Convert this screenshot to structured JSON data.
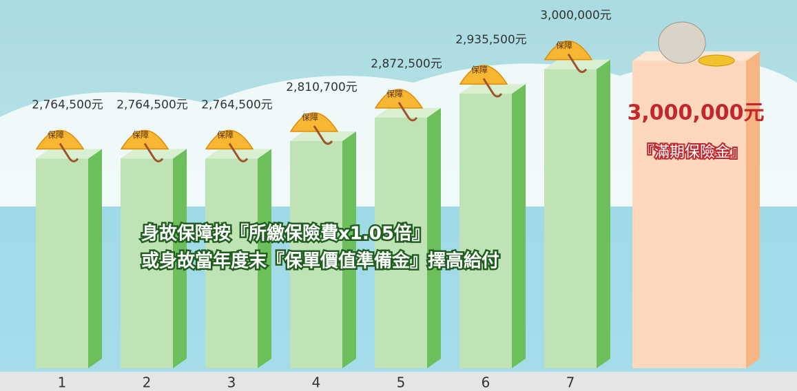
{
  "chart_data": {
    "type": "bar",
    "categories": [
      "1",
      "2",
      "3",
      "4",
      "5",
      "6",
      "7"
    ],
    "values": [
      2764500,
      2764500,
      2764500,
      2810700,
      2872500,
      2935500,
      3000000
    ],
    "value_labels": [
      "2,764,500元",
      "2,764,500元",
      "2,764,500元",
      "2,810,700元",
      "2,872,500元",
      "2,935,500元",
      "3,000,000元"
    ],
    "color": "#bfe3b5",
    "ylim": [
      2212000,
      3050000
    ],
    "badge": "保障",
    "notes": [
      "身故保障按『所繳保險費x1.05倍』",
      "或身故當年度末『保單價值準備金』擇高給付"
    ],
    "maturity": {
      "value": 3000000,
      "value_label": "3,000,000元",
      "caption": "『滿期保險金』",
      "color": "#fdd8bd"
    }
  }
}
